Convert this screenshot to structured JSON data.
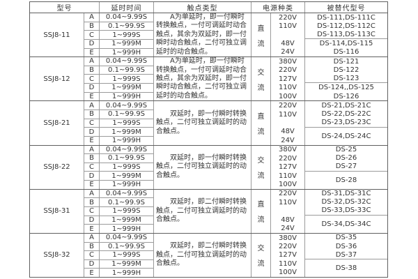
{
  "colors": {
    "background": "#ffffff",
    "text": "#333333",
    "outer_border": "#5f5f5f",
    "grid_line": "#9a9a9a"
  },
  "table": {
    "headers": {
      "model": "型号",
      "delay": "延时时间",
      "contact": "触点类型",
      "power": "电源种类",
      "replaced": "被替代型号"
    },
    "blocks": [
      {
        "model": "SSJ8-11",
        "rows": [
          {
            "letter": "A",
            "delay": "0.04~9.99S"
          },
          {
            "letter": "B",
            "delay": "0.1~99.9S"
          },
          {
            "letter": "C",
            "delay": "1~999S"
          },
          {
            "letter": "D",
            "delay": "1~999M"
          },
          {
            "letter": "E",
            "delay": "1~999H"
          }
        ],
        "contact": "A为单延时，即一付瞬时转换触点，一付可调延时动合触点，其余为双延时，即一付瞬时动合触点，二付可独立调延时的动合触点。",
        "power_type": "直流",
        "voltages": [
          "220V",
          "110V",
          "",
          "48V",
          "24V"
        ],
        "replaced_top": [
          "DS-111,DS-111C",
          "DS-112,DS-112C",
          "DS-113,DS-113C"
        ],
        "replaced_bottom": [
          "DS-114,DS-115",
          "DS-116"
        ]
      },
      {
        "model": "SSJ8-12",
        "rows": [
          {
            "letter": "A",
            "delay": "0.04~9.99S"
          },
          {
            "letter": "B",
            "delay": "0.1~99.9S"
          },
          {
            "letter": "C",
            "delay": "1~999S"
          },
          {
            "letter": "D",
            "delay": "1~999M"
          },
          {
            "letter": "E",
            "delay": "1~999H"
          }
        ],
        "contact": "A为单延时，即一付瞬时转换触点，一付可调延时动合触点，其余为双延时，即一付瞬时动合触点，二付可独立调延时的动合触点。",
        "power_type": "交流",
        "voltages": [
          "380V",
          "220V",
          "127V",
          "110V",
          "100V"
        ],
        "replaced_top": [
          "DS-121",
          "DS-122",
          "DS-123"
        ],
        "replaced_bottom": [
          "DS-124,,DS-125",
          "DS-126"
        ]
      },
      {
        "model": "SSJ8-21",
        "rows": [
          {
            "letter": "A",
            "delay": "0.04~9.99S"
          },
          {
            "letter": "B",
            "delay": "0.1~99.9S"
          },
          {
            "letter": "C",
            "delay": "1~999S"
          },
          {
            "letter": "D",
            "delay": "1~999M"
          },
          {
            "letter": "E",
            "delay": "1~999H"
          }
        ],
        "contact": "双延时，即一付瞬时转换触点，二付可独立调延时的动合触点。",
        "power_type": "直流",
        "voltages": [
          "220V",
          "110V",
          "",
          "48V",
          "24V"
        ],
        "replaced_top": [
          "DS-21,DS-21C",
          "DS-22,DS-22C",
          "DS-23,DS-23C"
        ],
        "replaced_bottom": [
          "DS-24,DS-24C"
        ]
      },
      {
        "model": "SSJ8-22",
        "rows": [
          {
            "letter": "A",
            "delay": "0.04~9.99S"
          },
          {
            "letter": "B",
            "delay": "0.1~99.9S"
          },
          {
            "letter": "C",
            "delay": "1~999S"
          },
          {
            "letter": "D",
            "delay": "1~999M"
          },
          {
            "letter": "E",
            "delay": "1~999H"
          }
        ],
        "contact": "双延时，即一付瞬时转换触点，二付可独立调延时的动合触点。",
        "power_type": "交流",
        "voltages": [
          "380V",
          "220V",
          "127V",
          "110V",
          "100V"
        ],
        "replaced_top": [
          "DS-25",
          "DS-26",
          "DS-27"
        ],
        "replaced_bottom": [
          "DS-28"
        ]
      },
      {
        "model": "SSJ8-31",
        "rows": [
          {
            "letter": "A",
            "delay": "0.04~9.99S"
          },
          {
            "letter": "B",
            "delay": "0.1~99.9S"
          },
          {
            "letter": "C",
            "delay": "1~999S"
          },
          {
            "letter": "D",
            "delay": "1~999M"
          },
          {
            "letter": "E",
            "delay": "1~999H"
          }
        ],
        "contact": "双延时，即二付瞬时转换触点，二付可独立调延时的动合触点。",
        "power_type": "直流",
        "voltages": [
          "220V",
          "110V",
          "",
          "48V",
          "24V"
        ],
        "replaced_top": [
          "DS-31,DS-31C",
          "DS-32,DS-32C",
          "DS-33,DS-33C"
        ],
        "replaced_bottom": [
          "DS-34,DS-34C"
        ]
      },
      {
        "model": "SSJ8-32",
        "rows": [
          {
            "letter": "A",
            "delay": "0.04~9.99S"
          },
          {
            "letter": "B",
            "delay": "0.1~99.9S"
          },
          {
            "letter": "C",
            "delay": "1~999S"
          },
          {
            "letter": "D",
            "delay": "1~999M"
          },
          {
            "letter": "E",
            "delay": "1~999H"
          }
        ],
        "contact": "双延时，即二付瞬时转换触点，二付可独立调延时的动合触点。",
        "power_type": "交流",
        "voltages": [
          "380V",
          "220V",
          "127V",
          "110V",
          "100V"
        ],
        "replaced_top": [
          "DS-35",
          "DS-36",
          "DS-37"
        ],
        "replaced_bottom": [
          "DS-38"
        ]
      }
    ]
  }
}
